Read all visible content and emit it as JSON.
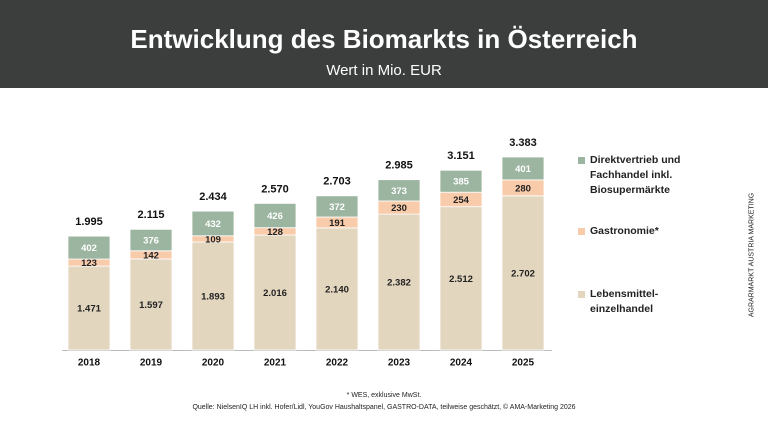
{
  "chart_data": {
    "type": "stacked_bar",
    "title": "Entwicklung des Biomarkts in Österreich",
    "subtitle": "Wert in Mio. EUR",
    "categories": [
      "2018",
      "2019",
      "2020",
      "2021",
      "2022",
      "2023",
      "2024",
      "2025"
    ],
    "series": [
      {
        "name": "Lebensmittel-einzelhandel",
        "color": "#e3d6bf",
        "values": [
          1471,
          1597,
          1893,
          2016,
          2140,
          2382,
          2512,
          2702
        ],
        "value_labels": [
          "1.471",
          "1.597",
          "1.893",
          "2.016",
          "2.140",
          "2.382",
          "2.512",
          "2.702"
        ]
      },
      {
        "name": "Gastronomie*",
        "color": "#f8cbab",
        "values": [
          123,
          142,
          109,
          128,
          191,
          230,
          254,
          280
        ],
        "value_labels": [
          "123",
          "142",
          "109",
          "128",
          "191",
          "230",
          "254",
          "280"
        ]
      },
      {
        "name": "Direktvertrieb und Fachhandel inkl. Biosupermärkte",
        "color": "#9cb5a1",
        "values": [
          402,
          376,
          432,
          426,
          372,
          373,
          385,
          401
        ],
        "value_labels": [
          "402",
          "376",
          "432",
          "426",
          "372",
          "373",
          "385",
          "401"
        ]
      }
    ],
    "totals": {
      "values": [
        1995,
        2115,
        2434,
        2570,
        2703,
        2985,
        3151,
        3383
      ],
      "value_labels": [
        "1.995",
        "2.115",
        "2.434",
        "2.570",
        "2.703",
        "2.985",
        "3.151",
        "3.383"
      ]
    },
    "footnote": "* WES, exklusive MwSt.",
    "source": "Quelle: NielsenIQ LH inkl. Hofer/Lidl, YouGov Haushaltspanel, GASTRO-DATA, teilweise geschätzt, © AMA-Marketing 2026",
    "side_label": "AGRARMARKT AUSTRIA MARKETING"
  }
}
